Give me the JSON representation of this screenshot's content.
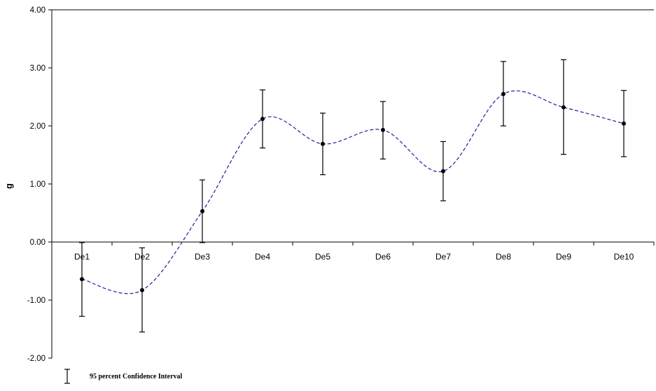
{
  "chart_data": {
    "type": "line",
    "categories": [
      "De1",
      "De2",
      "De3",
      "De4",
      "De5",
      "De6",
      "De7",
      "De8",
      "De9",
      "De10"
    ],
    "series": [
      {
        "values": [
          -0.64,
          -0.83,
          0.53,
          2.12,
          1.69,
          1.93,
          1.22,
          2.55,
          2.32,
          2.04
        ],
        "ci_lower": [
          -1.28,
          -1.55,
          -0.01,
          1.62,
          1.16,
          1.43,
          0.71,
          2.0,
          1.51,
          1.47
        ],
        "ci_upper": [
          -0.01,
          -0.1,
          1.07,
          2.62,
          2.22,
          2.42,
          1.73,
          3.11,
          3.14,
          2.61
        ],
        "line_style": "dashed smooth",
        "line_color": "#1f1f99",
        "marker_color": "#000000"
      }
    ],
    "ylabel": "g",
    "xlabel": "",
    "ylim": [
      -2,
      4
    ],
    "yticks": [
      -2,
      -1,
      0,
      1,
      2,
      3,
      4
    ],
    "ytick_labels": [
      "-2.00",
      "-1.00",
      "0.00",
      "1.00",
      "2.00",
      "3.00",
      "4.00"
    ],
    "grid": false,
    "legend": {
      "placement": "bottom-left",
      "label": "95 percent Confidence Interval"
    }
  }
}
